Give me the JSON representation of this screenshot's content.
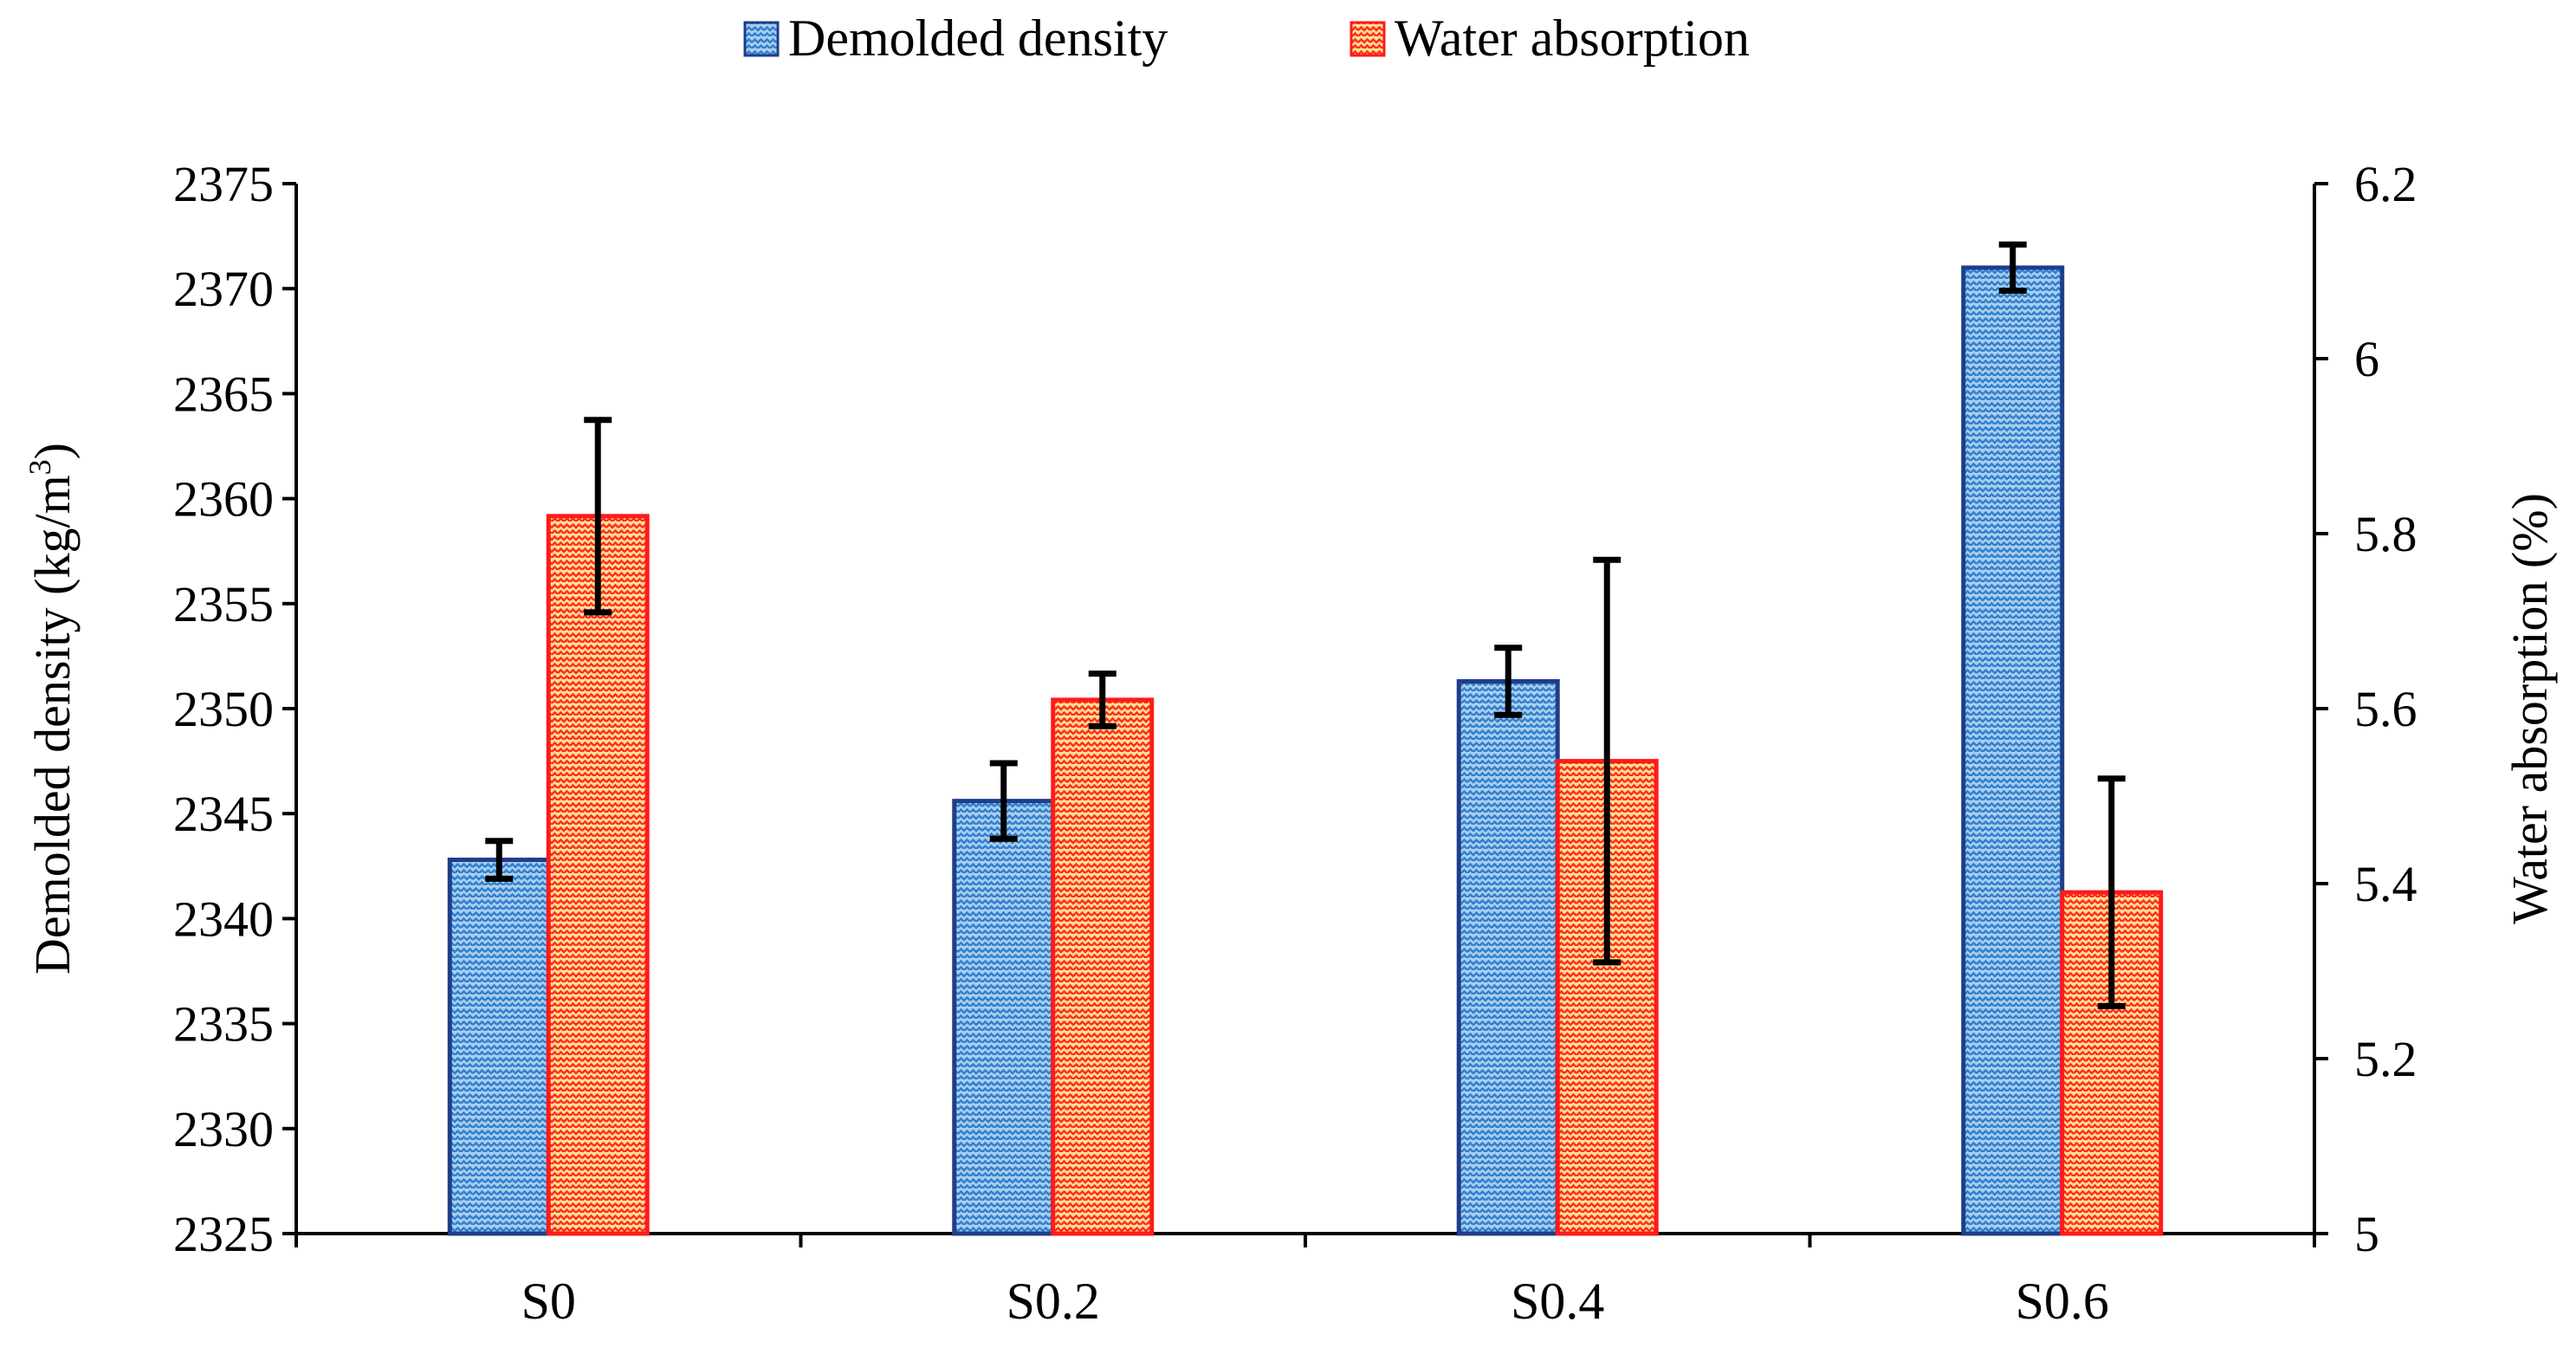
{
  "chart_data": {
    "type": "bar",
    "categories": [
      "S0",
      "S0.2",
      "S0.4",
      "S0.6"
    ],
    "series": [
      {
        "name": "Demolded density",
        "axis": "left",
        "values": [
          2342.8,
          2345.6,
          2351.3,
          2371.0
        ],
        "errors": [
          0.9,
          1.8,
          1.6,
          1.1
        ],
        "fill_color": "#a9cdef",
        "pattern_color": "#2f80cc",
        "border_color": "#1f3d8a"
      },
      {
        "name": "Water absorption",
        "axis": "right",
        "values": [
          5.82,
          5.61,
          5.54,
          5.39
        ],
        "errors": [
          0.11,
          0.03,
          0.23,
          0.13
        ],
        "fill_color": "#ffe08a",
        "pattern_color": "#ff2a2a",
        "border_color": "#ff1a1a"
      }
    ],
    "left_axis": {
      "label_main": "Demolded density (kg/m",
      "label_sup": "3",
      "label_end": ")",
      "ylim": [
        2325,
        2375
      ],
      "ticks": [
        "2325",
        "2330",
        "2335",
        "2340",
        "2345",
        "2350",
        "2355",
        "2360",
        "2365",
        "2370",
        "2375"
      ]
    },
    "right_axis": {
      "label": "Water absorption (%)",
      "ylim": [
        5.0,
        6.2
      ],
      "ticks": [
        "5",
        "5.2",
        "5.4",
        "5.6",
        "5.8",
        "6",
        "6.2"
      ]
    },
    "legend": {
      "position": "top-center",
      "items": [
        "Demolded density",
        "Water absorption"
      ]
    },
    "grid": false
  }
}
